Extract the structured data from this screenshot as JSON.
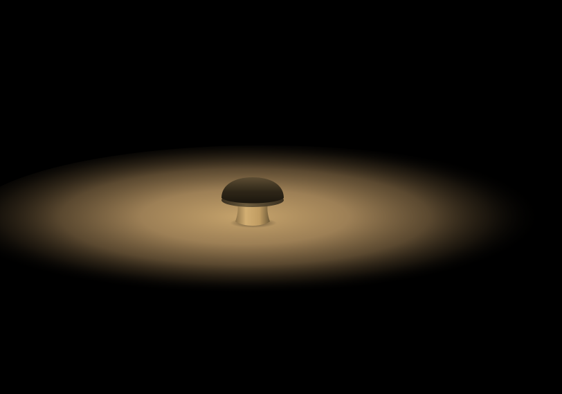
{
  "scene": {
    "subject": "mushroom-object",
    "background_color": "#000000",
    "light_color": "#c9a56c",
    "light_mid_color": "#8a7048",
    "cap_color": "#2e2618",
    "cap_highlight_color": "#6b5a3c",
    "stem_color": "#c9a468",
    "stem_shadow_color": "#6e5a38"
  }
}
